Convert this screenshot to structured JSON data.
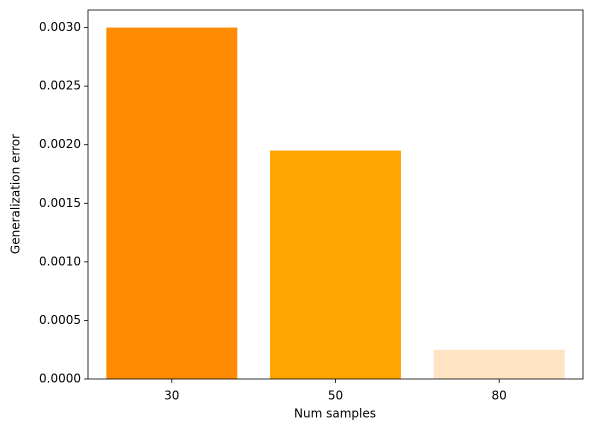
{
  "chart_data": {
    "type": "bar",
    "x_label": "Num samples",
    "y_label": "Generalization error",
    "categories": [
      "30",
      "50",
      "80"
    ],
    "values": [
      0.003,
      0.00195,
      0.00025
    ],
    "colors": [
      "#ff8c00",
      "#ffa500",
      "#ffe4c4"
    ],
    "ylim": [
      0,
      0.00315
    ],
    "yticks": [
      {
        "value": 0,
        "label": "0.0000"
      },
      {
        "value": 0.0005,
        "label": "0.0005"
      },
      {
        "value": 0.001,
        "label": "0.0010"
      },
      {
        "value": 0.0015,
        "label": "0.0015"
      },
      {
        "value": 0.002,
        "label": "0.0020"
      },
      {
        "value": 0.0025,
        "label": "0.0025"
      },
      {
        "value": 0.003,
        "label": "0.0030"
      }
    ],
    "grid": false
  }
}
